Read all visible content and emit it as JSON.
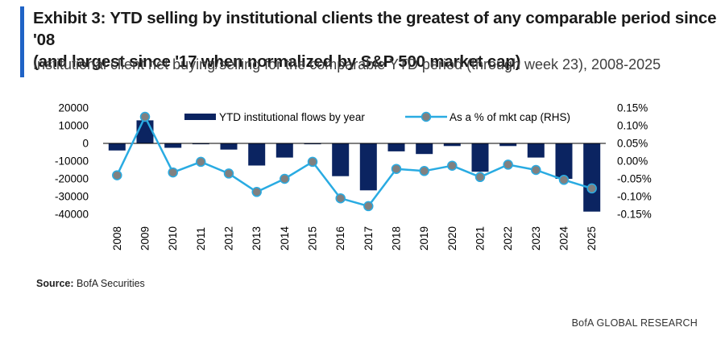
{
  "header": {
    "title_line1": "Exhibit 3: YTD selling by institutional clients the greatest of any comparable period since '08",
    "title_line2": "(and largest since '17 when normalized by S&P 500 market cap)",
    "subtitle": "Institutional client net buying/selling for the comparable YTD period (through week 23), 2008-2025"
  },
  "colors": {
    "accent": "#1f63c6",
    "bar": "#0b2461",
    "line": "#29abe2",
    "marker": "#808080"
  },
  "chart_data": {
    "type": "bar",
    "categories": [
      "2008",
      "2009",
      "2010",
      "2011",
      "2012",
      "2013",
      "2014",
      "2015",
      "2016",
      "2017",
      "2018",
      "2019",
      "2020",
      "2021",
      "2022",
      "2023",
      "2024",
      "2025"
    ],
    "series": [
      {
        "name": "YTD institutional flows by year",
        "type": "bar",
        "axis": "left",
        "values": [
          -4000,
          13000,
          -2500,
          -500,
          -3500,
          -12500,
          -8000,
          -500,
          -18500,
          -26500,
          -4500,
          -6000,
          -1500,
          -16000,
          -1500,
          -8000,
          -20000,
          -38500
        ]
      },
      {
        "name": "As a % of mkt cap (RHS)",
        "type": "line",
        "axis": "right",
        "values": [
          -0.04,
          0.125,
          -0.032,
          -0.002,
          -0.035,
          -0.087,
          -0.05,
          -0.002,
          -0.105,
          -0.127,
          -0.022,
          -0.028,
          -0.013,
          -0.045,
          -0.01,
          -0.025,
          -0.053,
          -0.077
        ]
      }
    ],
    "y_left": {
      "ylim": [
        -40000,
        20000
      ],
      "ticks": [
        20000,
        10000,
        0,
        -10000,
        -20000,
        -30000,
        -40000
      ],
      "tick_labels": [
        "20000",
        "10000",
        "0",
        "-10000",
        "-20000",
        "-30000",
        "-40000"
      ]
    },
    "y_right": {
      "ylim": [
        -0.15,
        0.15
      ],
      "ticks": [
        0.15,
        0.1,
        0.05,
        0.0,
        -0.05,
        -0.1,
        -0.15
      ],
      "tick_labels": [
        "0.15%",
        "0.10%",
        "0.05%",
        "0.00%",
        "-0.05%",
        "-0.10%",
        "-0.15%"
      ]
    },
    "legend_position": "top",
    "grid": false
  },
  "source": {
    "label": "Source:",
    "text": "BofA Securities"
  },
  "footer": "BofA GLOBAL RESEARCH"
}
